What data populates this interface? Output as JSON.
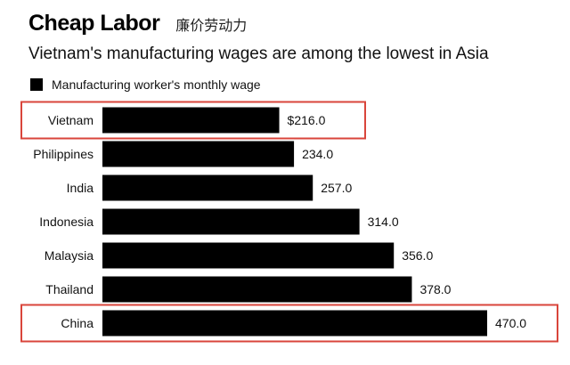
{
  "header": {
    "title": "Cheap Labor",
    "title_cn": "廉价劳动力",
    "subtitle": "Vietnam's manufacturing wages are among the lowest in Asia"
  },
  "chart_data": {
    "type": "bar",
    "orientation": "horizontal",
    "title": "Cheap Labor",
    "subtitle": "Vietnam's manufacturing wages are among the lowest in Asia",
    "legend": "Manufacturing worker's monthly wage",
    "legend_position": "top-left",
    "categories": [
      "Vietnam",
      "Philippines",
      "India",
      "Indonesia",
      "Malaysia",
      "Thailand",
      "China"
    ],
    "values": [
      216.0,
      234.0,
      257.0,
      314.0,
      356.0,
      378.0,
      470.0
    ],
    "value_labels": [
      "$216.0",
      "234.0",
      "257.0",
      "314.0",
      "356.0",
      "378.0",
      "470.0"
    ],
    "highlighted": [
      "Vietnam",
      "China"
    ],
    "xlim": [
      0,
      470
    ],
    "grid": false,
    "bar_color": "#000000",
    "highlight_color": "#d9453b"
  }
}
